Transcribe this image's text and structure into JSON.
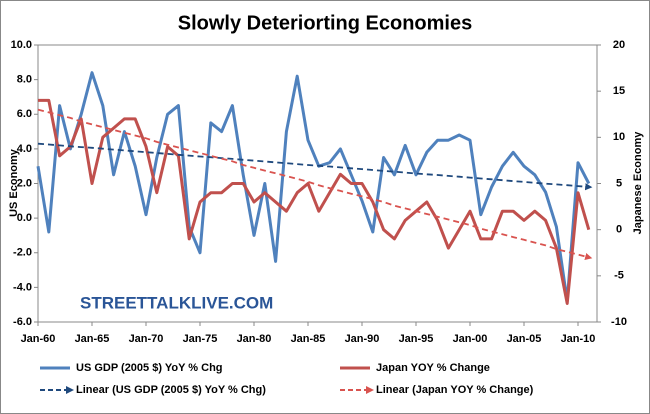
{
  "chart_data": {
    "type": "line",
    "title": "Slowly Deteriorting Economies",
    "y_label": "US Economy",
    "y2_label": "Japanese Economy",
    "watermark": "STREETTALKLIVE.COM",
    "categories": [
      "Jan-60",
      null,
      null,
      null,
      null,
      "Jan-65",
      null,
      null,
      null,
      null,
      "Jan-70",
      null,
      null,
      null,
      null,
      "Jan-75",
      null,
      null,
      null,
      null,
      "Jan-80",
      null,
      null,
      null,
      null,
      "Jan-85",
      null,
      null,
      null,
      null,
      "Jan-90",
      null,
      null,
      null,
      null,
      "Jan-95",
      null,
      null,
      null,
      null,
      "Jan-00",
      null,
      null,
      null,
      null,
      "Jan-05",
      null,
      null,
      null,
      null,
      "Jan-10",
      null
    ],
    "ylim": [
      -6,
      10
    ],
    "yticks": [
      {
        "value": -6,
        "label": "-6.0"
      },
      {
        "value": -4,
        "label": "-4.0"
      },
      {
        "value": -2,
        "label": "-2.0"
      },
      {
        "value": 0,
        "label": "0.0"
      },
      {
        "value": 2,
        "label": "2.0"
      },
      {
        "value": 4,
        "label": "4.0"
      },
      {
        "value": 6,
        "label": "6.0"
      },
      {
        "value": 8,
        "label": "8.0"
      },
      {
        "value": 10,
        "label": "10.0"
      }
    ],
    "y2lim": [
      -10,
      20
    ],
    "y2ticks": [
      -10,
      -5,
      0,
      5,
      10,
      15,
      20
    ],
    "series": [
      {
        "name": "US GDP (2005 $) YoY % Chg",
        "color": "#4f81bd",
        "dash": false,
        "values": [
          3.0,
          -0.8,
          6.5,
          4.0,
          6.0,
          8.4,
          6.5,
          2.5,
          5.0,
          3.0,
          0.2,
          3.5,
          6.0,
          6.5,
          -0.5,
          -2.0,
          5.5,
          5.0,
          6.5,
          2.5,
          -1.0,
          2.0,
          -2.5,
          5.0,
          8.2,
          4.5,
          3.0,
          3.2,
          4.0,
          2.5,
          1.0,
          -0.8,
          3.5,
          2.5,
          4.2,
          2.5,
          3.8,
          4.5,
          4.5,
          4.8,
          4.5,
          0.2,
          1.8,
          3.0,
          3.8,
          3.0,
          2.5,
          1.5,
          -0.5,
          -4.8,
          3.2,
          2.0
        ]
      },
      {
        "name": "Japan YOY % Change",
        "color": "#c0504d",
        "dash": false,
        "axis": "y2",
        "values": [
          14,
          14,
          8,
          9,
          12,
          5,
          10,
          11,
          12,
          12,
          9,
          4,
          9,
          8,
          -1,
          3,
          4,
          4,
          5,
          5,
          3,
          4,
          3,
          2,
          4,
          5,
          2,
          4,
          6,
          5,
          5,
          3,
          0,
          -1,
          1,
          2,
          3,
          1,
          -2,
          0,
          2,
          -1,
          -1,
          2,
          2,
          1,
          2,
          1,
          -2,
          -8,
          4,
          0
        ]
      },
      {
        "name": "Linear (US GDP (2005 $) YoY % Chg)",
        "color": "#1f497d",
        "dash": true,
        "values": [
          4.3,
          4.25,
          4.2,
          4.15,
          4.1,
          4.06,
          4.01,
          3.96,
          3.91,
          3.86,
          3.81,
          3.76,
          3.71,
          3.66,
          3.61,
          3.56,
          3.52,
          3.47,
          3.42,
          3.37,
          3.32,
          3.27,
          3.22,
          3.17,
          3.12,
          3.07,
          3.02,
          2.98,
          2.93,
          2.88,
          2.83,
          2.78,
          2.73,
          2.68,
          2.63,
          2.58,
          2.53,
          2.49,
          2.44,
          2.39,
          2.34,
          2.29,
          2.24,
          2.19,
          2.14,
          2.09,
          2.04,
          1.99,
          1.95,
          1.9,
          1.85,
          1.8
        ]
      },
      {
        "name": "Linear (Japan YOY % Change)",
        "color": "#d9534f",
        "dash": true,
        "axis": "y2",
        "values": [
          13.0,
          12.7,
          12.4,
          12.1,
          11.7,
          11.4,
          11.1,
          10.8,
          10.5,
          10.2,
          9.9,
          9.5,
          9.2,
          8.9,
          8.6,
          8.3,
          8.0,
          7.7,
          7.4,
          7.0,
          6.7,
          6.4,
          6.1,
          5.8,
          5.5,
          5.2,
          4.8,
          4.5,
          4.2,
          3.9,
          3.6,
          3.3,
          3.0,
          2.6,
          2.3,
          2.0,
          1.7,
          1.4,
          1.1,
          0.8,
          0.5,
          0.1,
          -0.2,
          -0.5,
          -0.8,
          -1.1,
          -1.4,
          -1.7,
          -2.1,
          -2.4,
          -2.7,
          -3.0
        ]
      }
    ]
  }
}
